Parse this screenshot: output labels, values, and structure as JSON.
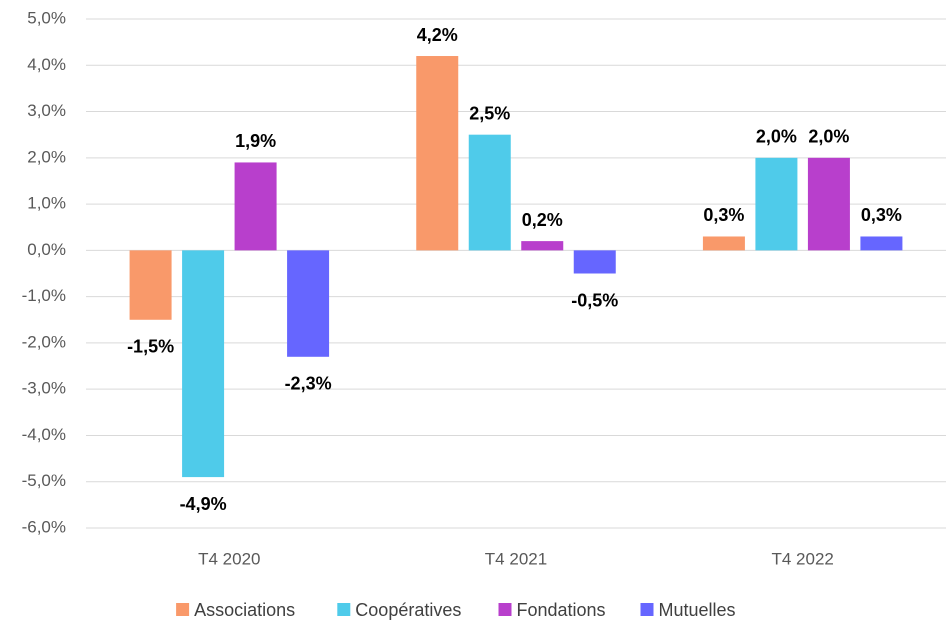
{
  "chart_data": {
    "type": "bar",
    "categories": [
      "T4 2020",
      "T4 2021",
      "T4 2022"
    ],
    "series": [
      {
        "name": "Associations",
        "color": "#f9996a",
        "values": [
          -1.5,
          4.2,
          0.3
        ],
        "value_labels": [
          "-1,5%",
          "4,2%",
          "0,3%"
        ]
      },
      {
        "name": "Coopératives",
        "color": "#4fcbea",
        "values": [
          -4.9,
          2.5,
          2.0
        ],
        "value_labels": [
          "-4,9%",
          "2,5%",
          "2,0%"
        ]
      },
      {
        "name": "Fondations",
        "color": "#b83fcc",
        "values": [
          1.9,
          0.2,
          2.0
        ],
        "value_labels": [
          "1,9%",
          "0,2%",
          "2,0%"
        ]
      },
      {
        "name": "Mutuelles",
        "color": "#6666ff",
        "values": [
          -2.3,
          -0.5,
          0.3
        ],
        "value_labels": [
          "-2,3%",
          "-0,5%",
          "0,3%"
        ]
      }
    ],
    "ylim": [
      -6,
      5
    ],
    "yticks": [
      {
        "value": 5,
        "label": "5,0%"
      },
      {
        "value": 4,
        "label": "4,0%"
      },
      {
        "value": 3,
        "label": "3,0%"
      },
      {
        "value": 2,
        "label": "2,0%"
      },
      {
        "value": 1,
        "label": "1,0%"
      },
      {
        "value": 0,
        "label": "0,0%"
      },
      {
        "value": -1,
        "label": "-1,0%"
      },
      {
        "value": -2,
        "label": "-2,0%"
      },
      {
        "value": -3,
        "label": "-3,0%"
      },
      {
        "value": -4,
        "label": "-4,0%"
      },
      {
        "value": -5,
        "label": "-5,0%"
      },
      {
        "value": -6,
        "label": "-6,0%"
      }
    ],
    "grid": true,
    "legend": "bottom"
  }
}
